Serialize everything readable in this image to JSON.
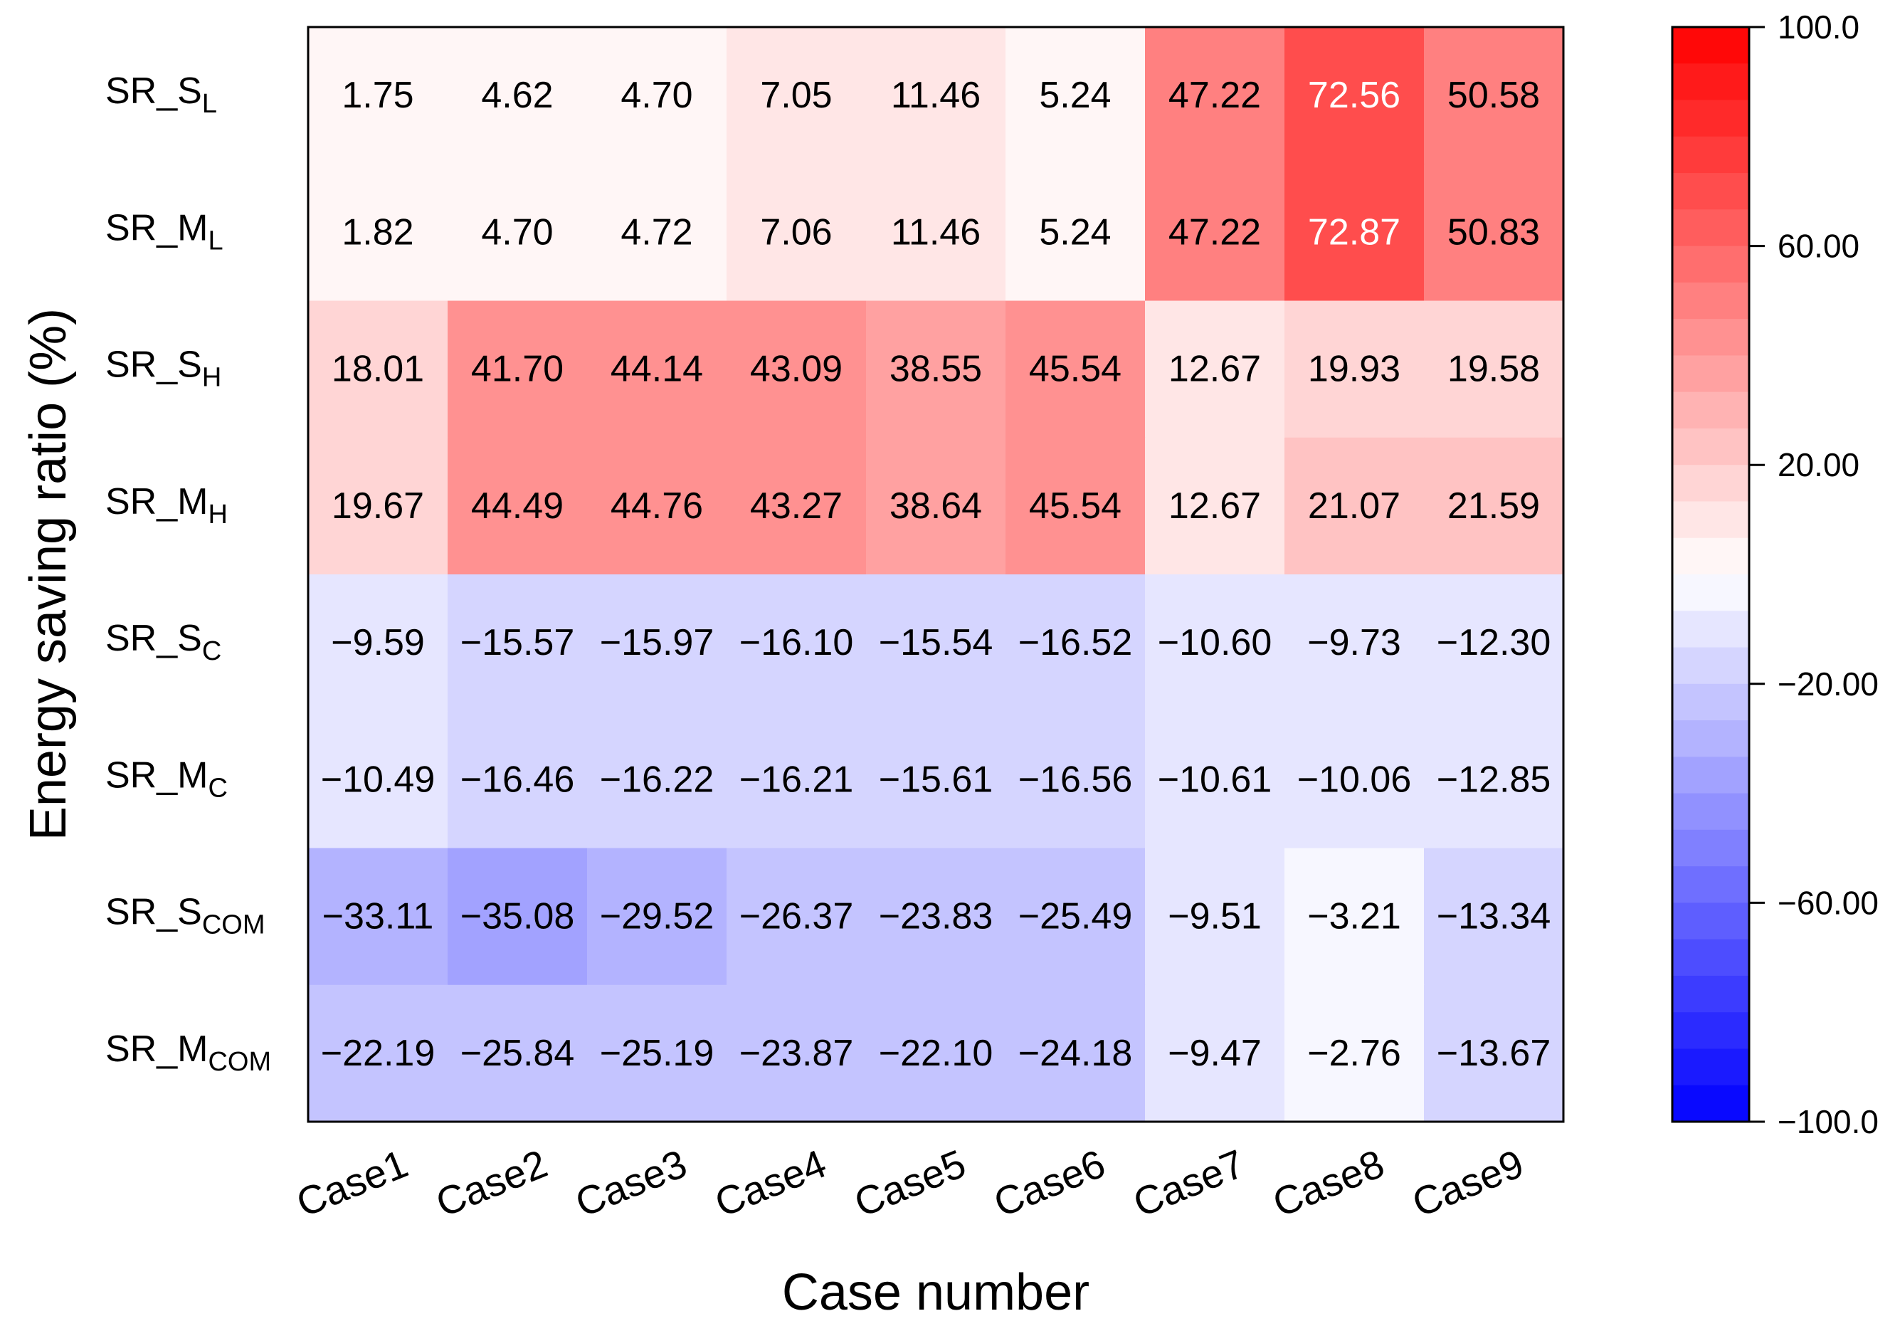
{
  "chart_data": {
    "type": "heatmap",
    "xlabel": "Case number",
    "ylabel": "Energy saving ratio (%)",
    "columns": [
      "Case1",
      "Case2",
      "Case3",
      "Case4",
      "Case5",
      "Case6",
      "Case7",
      "Case8",
      "Case9"
    ],
    "rows": [
      {
        "name": "SR_S",
        "sub": "L"
      },
      {
        "name": "SR_M",
        "sub": "L"
      },
      {
        "name": "SR_S",
        "sub": "H"
      },
      {
        "name": "SR_M",
        "sub": "H"
      },
      {
        "name": "SR_S",
        "sub": "C"
      },
      {
        "name": "SR_M",
        "sub": "C"
      },
      {
        "name": "SR_S",
        "sub": "COM"
      },
      {
        "name": "SR_M",
        "sub": "COM"
      }
    ],
    "values": [
      [
        1.75,
        4.62,
        4.7,
        7.05,
        11.46,
        5.24,
        47.22,
        72.56,
        50.58
      ],
      [
        1.82,
        4.7,
        4.72,
        7.06,
        11.46,
        5.24,
        47.22,
        72.87,
        50.83
      ],
      [
        18.01,
        41.7,
        44.14,
        43.09,
        38.55,
        45.54,
        12.67,
        19.93,
        19.58
      ],
      [
        19.67,
        44.49,
        44.76,
        43.27,
        38.64,
        45.54,
        12.67,
        21.07,
        21.59
      ],
      [
        -9.59,
        -15.57,
        -15.97,
        -16.1,
        -15.54,
        -16.52,
        -10.6,
        -9.73,
        -12.3
      ],
      [
        -10.49,
        -16.46,
        -16.22,
        -16.21,
        -15.61,
        -16.56,
        -10.61,
        -10.06,
        -12.85
      ],
      [
        -33.11,
        -35.08,
        -29.52,
        -26.37,
        -23.83,
        -25.49,
        -9.51,
        -3.21,
        -13.34
      ],
      [
        -22.19,
        -25.84,
        -25.19,
        -23.87,
        -22.1,
        -24.18,
        -9.47,
        -2.76,
        -13.67
      ]
    ],
    "value_labels": [
      [
        "1.75",
        "4.62",
        "4.70",
        "7.05",
        "11.46",
        "5.24",
        "47.22",
        "72.56",
        "50.58"
      ],
      [
        "1.82",
        "4.70",
        "4.72",
        "7.06",
        "11.46",
        "5.24",
        "47.22",
        "72.87",
        "50.83"
      ],
      [
        "18.01",
        "41.70",
        "44.14",
        "43.09",
        "38.55",
        "45.54",
        "12.67",
        "19.93",
        "19.58"
      ],
      [
        "19.67",
        "44.49",
        "44.76",
        "43.27",
        "38.64",
        "45.54",
        "12.67",
        "21.07",
        "21.59"
      ],
      [
        "−9.59",
        "−15.57",
        "−15.97",
        "−16.10",
        "−15.54",
        "−16.52",
        "−10.60",
        "−9.73",
        "−12.30"
      ],
      [
        "−10.49",
        "−16.46",
        "−16.22",
        "−16.21",
        "−15.61",
        "−16.56",
        "−10.61",
        "−10.06",
        "−12.85"
      ],
      [
        "−33.11",
        "−35.08",
        "−29.52",
        "−26.37",
        "−23.83",
        "−25.49",
        "−9.51",
        "−3.21",
        "−13.34"
      ],
      [
        "−22.19",
        "−25.84",
        "−25.19",
        "−23.87",
        "−22.10",
        "−24.18",
        "−9.47",
        "−2.76",
        "−13.67"
      ]
    ],
    "colorbar": {
      "range": [
        -100,
        100
      ],
      "levels": 30,
      "ticks": [
        100,
        60,
        20,
        -20,
        -60,
        -100
      ],
      "tick_labels": [
        "100.0",
        "60.00",
        "20.00",
        "−20.00",
        "−60.00",
        "−100.0"
      ],
      "color_high": "#ff0000",
      "color_mid": "#ffffff",
      "color_low": "#0000ff"
    }
  }
}
